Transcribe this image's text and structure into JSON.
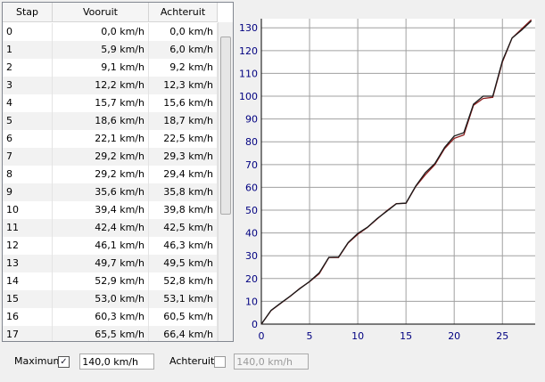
{
  "table": {
    "headers": [
      "Stap",
      "Vooruit",
      "Achteruit"
    ],
    "rows": [
      [
        "0",
        "0,0 km/h",
        "0,0 km/h"
      ],
      [
        "1",
        "5,9 km/h",
        "6,0 km/h"
      ],
      [
        "2",
        "9,1 km/h",
        "9,2 km/h"
      ],
      [
        "3",
        "12,2 km/h",
        "12,3 km/h"
      ],
      [
        "4",
        "15,7 km/h",
        "15,6 km/h"
      ],
      [
        "5",
        "18,6 km/h",
        "18,7 km/h"
      ],
      [
        "6",
        "22,1 km/h",
        "22,5 km/h"
      ],
      [
        "7",
        "29,2 km/h",
        "29,3 km/h"
      ],
      [
        "8",
        "29,2 km/h",
        "29,4 km/h"
      ],
      [
        "9",
        "35,6 km/h",
        "35,8 km/h"
      ],
      [
        "10",
        "39,4 km/h",
        "39,8 km/h"
      ],
      [
        "11",
        "42,4 km/h",
        "42,5 km/h"
      ],
      [
        "12",
        "46,1 km/h",
        "46,3 km/h"
      ],
      [
        "13",
        "49,7 km/h",
        "49,5 km/h"
      ],
      [
        "14",
        "52,9 km/h",
        "52,8 km/h"
      ],
      [
        "15",
        "53,0 km/h",
        "53,1 km/h"
      ],
      [
        "16",
        "60,3 km/h",
        "60,5 km/h"
      ],
      [
        "17",
        "65,5 km/h",
        "66,4 km/h"
      ]
    ]
  },
  "controls": {
    "maximum_label": "Maximum",
    "maximum_checked": true,
    "maximum_value": "140,0 km/h",
    "achteruit_label": "Achteruit",
    "achteruit_checked": false,
    "achteruit_value": "140,0 km/h"
  },
  "chart_data": {
    "type": "line",
    "x": [
      0,
      1,
      2,
      3,
      4,
      5,
      6,
      7,
      8,
      9,
      10,
      11,
      12,
      13,
      14,
      15,
      16,
      17,
      18,
      19,
      20,
      21,
      22,
      23,
      24,
      25,
      26,
      27,
      28
    ],
    "series": [
      {
        "color": "#8b1a1a",
        "values": [
          0,
          5.9,
          9.1,
          12.2,
          15.7,
          18.6,
          22.1,
          29.2,
          29.2,
          35.6,
          39.4,
          42.4,
          46.1,
          49.7,
          52.9,
          53.0,
          60.3,
          65.5,
          70.0,
          77.0,
          81.5,
          83.0,
          96.0,
          99.0,
          99.5,
          115.0,
          125.5,
          129.5,
          133.5
        ]
      },
      {
        "color": "#1a1a1a",
        "values": [
          0,
          6.0,
          9.2,
          12.3,
          15.6,
          18.7,
          22.5,
          29.3,
          29.4,
          35.8,
          39.8,
          42.5,
          46.3,
          49.5,
          52.8,
          53.1,
          60.5,
          66.4,
          70.5,
          77.5,
          82.5,
          84.0,
          96.5,
          100.0,
          100.0,
          115.5,
          125.5,
          129.0,
          133.0
        ]
      }
    ],
    "xlim": [
      0,
      28.4
    ],
    "ylim": [
      0,
      134
    ],
    "xticks": [
      0,
      5,
      10,
      15,
      20,
      25
    ],
    "yticks": [
      0,
      10,
      20,
      30,
      40,
      50,
      60,
      70,
      80,
      90,
      100,
      110,
      120,
      130
    ],
    "grid": true,
    "tick_color": "#000080",
    "grid_color": "#a0a0a0"
  }
}
